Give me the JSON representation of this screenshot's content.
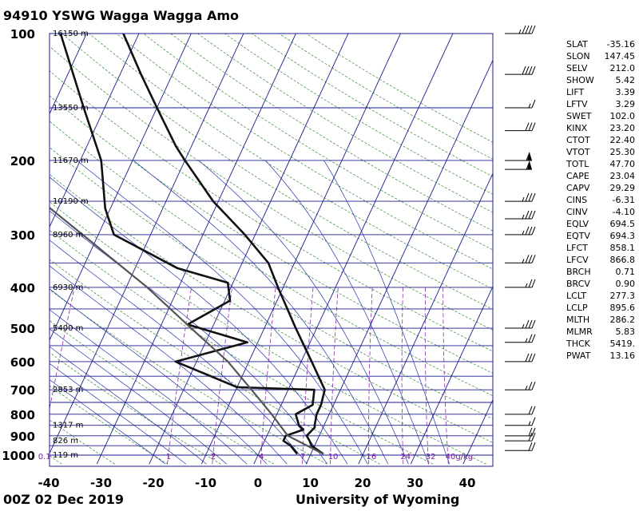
{
  "header": {
    "title": "94910 YSWG Wagga Wagga Amo"
  },
  "footer": {
    "time": "00Z 02 Dec 2019",
    "source": "University of Wyoming"
  },
  "indices": [
    {
      "key": "SLAT",
      "value": "-35.16"
    },
    {
      "key": "SLON",
      "value": "147.45"
    },
    {
      "key": "SELV",
      "value": "212.0"
    },
    {
      "key": "SHOW",
      "value": "5.42"
    },
    {
      "key": "LIFT",
      "value": "3.39"
    },
    {
      "key": "LFTV",
      "value": "3.29"
    },
    {
      "key": "SWET",
      "value": "102.0"
    },
    {
      "key": "KINX",
      "value": "23.20"
    },
    {
      "key": "CTOT",
      "value": "22.40"
    },
    {
      "key": "VTOT",
      "value": "25.30"
    },
    {
      "key": "TOTL",
      "value": "47.70"
    },
    {
      "key": "CAPE",
      "value": "23.04"
    },
    {
      "key": "CAPV",
      "value": "29.29"
    },
    {
      "key": "CINS",
      "value": "-6.31"
    },
    {
      "key": "CINV",
      "value": "-4.10"
    },
    {
      "key": "EQLV",
      "value": "694.5"
    },
    {
      "key": "EQTV",
      "value": "694.3"
    },
    {
      "key": "LFCT",
      "value": "858.1"
    },
    {
      "key": "LFCV",
      "value": "866.8"
    },
    {
      "key": "BRCH",
      "value": "0.71"
    },
    {
      "key": "BRCV",
      "value": "0.90"
    },
    {
      "key": "LCLT",
      "value": "277.3"
    },
    {
      "key": "LCLP",
      "value": "895.6"
    },
    {
      "key": "MLTH",
      "value": "286.2"
    },
    {
      "key": "MLMR",
      "value": "5.83"
    },
    {
      "key": "THCK",
      "value": "5419."
    },
    {
      "key": "PWAT",
      "value": "13.16"
    }
  ],
  "chart_data": {
    "type": "line",
    "chart_kind": "skew-T log-P sounding",
    "pressure_axis": {
      "scale": "log",
      "range": [
        1000,
        100
      ],
      "ticks": [
        100,
        200,
        300,
        400,
        500,
        600,
        700,
        800,
        900,
        1000
      ],
      "tick_labels": [
        "100",
        "200",
        "300",
        "400",
        "500",
        "600",
        "700",
        "800",
        "900",
        "1000"
      ]
    },
    "temperature_axis": {
      "unit": "°C",
      "range": [
        -40,
        45
      ],
      "ticks": [
        -40,
        -30,
        -20,
        -10,
        0,
        10,
        20,
        30,
        40
      ],
      "tick_labels": [
        "-40",
        "-30",
        "-20",
        "-10",
        "0",
        "10",
        "20",
        "30",
        "40"
      ]
    },
    "height_labels": [
      {
        "p": 1000,
        "text": "119 m"
      },
      {
        "p": 925,
        "text": "826 m"
      },
      {
        "p": 850,
        "text": "1317 m"
      },
      {
        "p": 700,
        "text": "2853 m"
      },
      {
        "p": 500,
        "text": "5400 m"
      },
      {
        "p": 400,
        "text": "6930 m"
      },
      {
        "p": 300,
        "text": "8960 m"
      },
      {
        "p": 250,
        "text": "10190 m"
      },
      {
        "p": 200,
        "text": "11670 m"
      },
      {
        "p": 150,
        "text": "13550 m"
      },
      {
        "p": 100,
        "text": "16150 m"
      }
    ],
    "mixing_ratio_labels": [
      {
        "w": 0.1,
        "text": "0.1"
      },
      {
        "w": 1,
        "text": "1"
      },
      {
        "w": 2,
        "text": "2"
      },
      {
        "w": 4,
        "text": "4"
      },
      {
        "w": 7,
        "text": "7"
      },
      {
        "w": 10,
        "text": "10"
      },
      {
        "w": 16,
        "text": "16"
      },
      {
        "w": 24,
        "text": "24"
      },
      {
        "w": 32,
        "text": "32"
      },
      {
        "w": 40,
        "text": "40g/kg"
      }
    ],
    "series": [
      {
        "kind": "temperature",
        "points": [
          {
            "p": 994,
            "t": 12.4
          },
          {
            "p": 950,
            "t": 9.4
          },
          {
            "p": 925,
            "t": 8.6
          },
          {
            "p": 900,
            "t": 7.6
          },
          {
            "p": 860,
            "t": 8.4
          },
          {
            "p": 850,
            "t": 8.2
          },
          {
            "p": 800,
            "t": 7.6
          },
          {
            "p": 760,
            "t": 7.6
          },
          {
            "p": 700,
            "t": 7.0
          },
          {
            "p": 600,
            "t": 2.0
          },
          {
            "p": 500,
            "t": -4.0
          },
          {
            "p": 400,
            "t": -11.0
          },
          {
            "p": 350,
            "t": -15.0
          },
          {
            "p": 300,
            "t": -22.0
          },
          {
            "p": 250,
            "t": -31.0
          },
          {
            "p": 200,
            "t": -40.0
          },
          {
            "p": 185,
            "t": -43.0
          },
          {
            "p": 150,
            "t": -50.0
          },
          {
            "p": 125,
            "t": -56.0
          },
          {
            "p": 100,
            "t": -63.0
          }
        ]
      },
      {
        "kind": "dewpoint",
        "points": [
          {
            "p": 994,
            "t": 7.4
          },
          {
            "p": 950,
            "t": 5.4
          },
          {
            "p": 925,
            "t": 3.6
          },
          {
            "p": 900,
            "t": 3.6
          },
          {
            "p": 870,
            "t": 6.4
          },
          {
            "p": 850,
            "t": 5.2
          },
          {
            "p": 800,
            "t": 3.6
          },
          {
            "p": 760,
            "t": 6.0
          },
          {
            "p": 700,
            "t": 5.0
          },
          {
            "p": 690,
            "t": -10.0
          },
          {
            "p": 600,
            "t": -24.0
          },
          {
            "p": 540,
            "t": -12.0
          },
          {
            "p": 490,
            "t": -25.0
          },
          {
            "p": 430,
            "t": -19.0
          },
          {
            "p": 390,
            "t": -21.0
          },
          {
            "p": 360,
            "t": -32.0
          },
          {
            "p": 300,
            "t": -47.0
          },
          {
            "p": 260,
            "t": -51.0
          },
          {
            "p": 200,
            "t": -56.0
          },
          {
            "p": 150,
            "t": -64.0
          },
          {
            "p": 100,
            "t": -75.0
          }
        ]
      },
      {
        "kind": "parcel",
        "points": [
          {
            "p": 994,
            "t": 12.4
          },
          {
            "p": 900,
            "t": 4.0
          },
          {
            "p": 800,
            "t": -1.0
          },
          {
            "p": 700,
            "t": -7.0
          },
          {
            "p": 600,
            "t": -14.0
          },
          {
            "p": 500,
            "t": -24.0
          },
          {
            "p": 400,
            "t": -36.0
          },
          {
            "p": 300,
            "t": -53.0
          },
          {
            "p": 200,
            "t": -77.0
          },
          {
            "p": 100,
            "t": -125.0
          }
        ]
      }
    ],
    "wind_barbs": [
      {
        "p": 100,
        "dir": 270,
        "kt": 45
      },
      {
        "p": 125,
        "dir": 270,
        "kt": 40
      },
      {
        "p": 150,
        "dir": 260,
        "kt": 15
      },
      {
        "p": 170,
        "dir": 260,
        "kt": 30
      },
      {
        "p": 200,
        "dir": 270,
        "kt": 60
      },
      {
        "p": 210,
        "dir": 270,
        "kt": 60
      },
      {
        "p": 250,
        "dir": 280,
        "kt": 35
      },
      {
        "p": 275,
        "dir": 280,
        "kt": 35
      },
      {
        "p": 300,
        "dir": 280,
        "kt": 35
      },
      {
        "p": 350,
        "dir": 280,
        "kt": 35
      },
      {
        "p": 400,
        "dir": 280,
        "kt": 25
      },
      {
        "p": 500,
        "dir": 280,
        "kt": 35
      },
      {
        "p": 540,
        "dir": 280,
        "kt": 25
      },
      {
        "p": 600,
        "dir": 280,
        "kt": 30
      },
      {
        "p": 700,
        "dir": 270,
        "kt": 25
      },
      {
        "p": 800,
        "dir": 270,
        "kt": 20
      },
      {
        "p": 850,
        "dir": 270,
        "kt": 15
      },
      {
        "p": 900,
        "dir": 270,
        "kt": 20
      },
      {
        "p": 925,
        "dir": 270,
        "kt": 20
      },
      {
        "p": 975,
        "dir": 270,
        "kt": 20
      }
    ]
  }
}
